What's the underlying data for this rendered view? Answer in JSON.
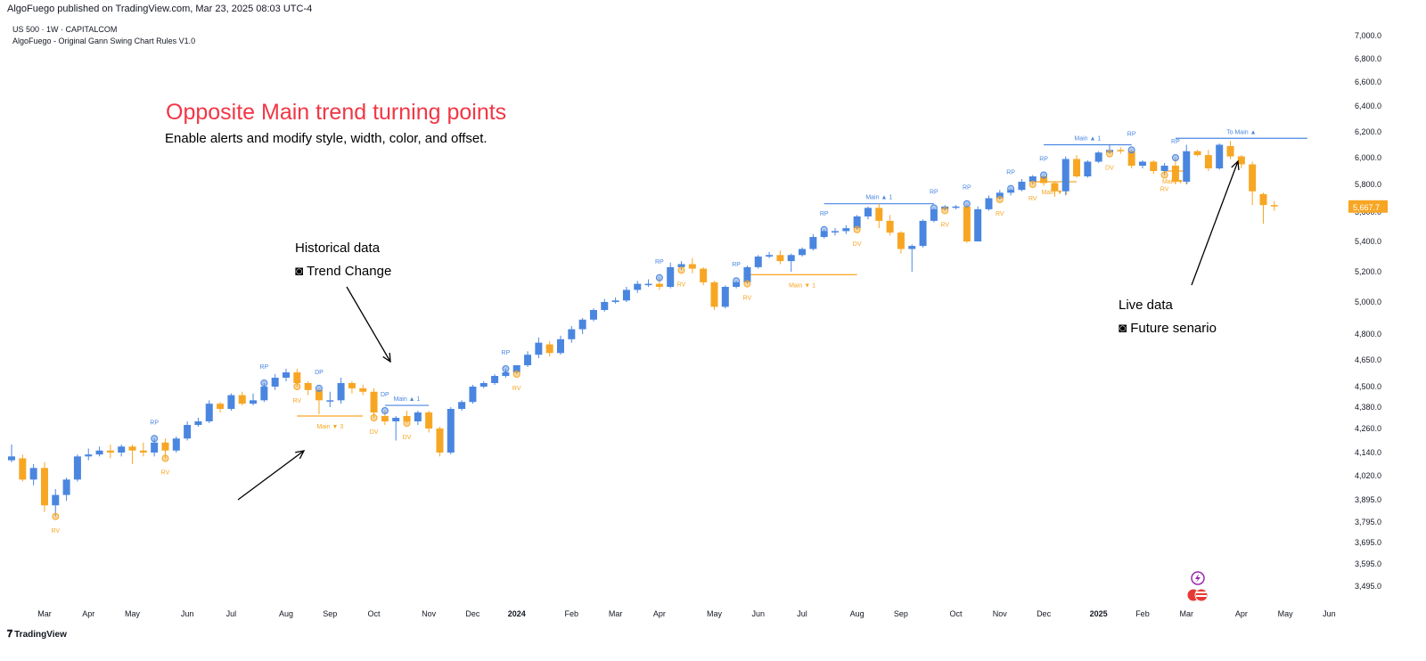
{
  "publisher_line": "AlgoFuego published on TradingView.com, Mar 23, 2025 08:03 UTC-4",
  "symbol_line": "US 500 · 1W · CAPITALCOM",
  "indicator_line": "AlgoFuego - Original Gann Swing Chart Rules V1.0",
  "headline": "Opposite Main trend turning points",
  "subheadline": "Enable alerts and modify style, width, color, and offset.",
  "notes": {
    "historical_title": "Historical data",
    "historical_sub": "◙ Trend Change",
    "live_title": "Live data",
    "live_sub": "◙ Future senario"
  },
  "footer": "TradingView",
  "colors": {
    "bull": "#4a86e0",
    "bear": "#f7a624",
    "headline": "#f23645",
    "price_label": "#f7a624"
  },
  "chart_data": {
    "type": "candlestick",
    "title": "US 500 · 1W · CAPITALCOM",
    "current_price": "5,667.7",
    "y_ticks": [
      "7,000.0",
      "6,800.0",
      "6,600.0",
      "6,400.0",
      "6,200.0",
      "6,000.0",
      "5,800.0",
      "5,600.0",
      "5,400.0",
      "5,200.0",
      "5,000.0",
      "4,800.0",
      "4,650.0",
      "4,500.0",
      "4,380.0",
      "4,260.0",
      "4,140.0",
      "4,020.0",
      "3,895.0",
      "3,795.0",
      "3,695.0",
      "3,595.0",
      "3,495.0"
    ],
    "y_tick_values": [
      7000,
      6800,
      6600,
      6400,
      6200,
      6000,
      5800,
      5600,
      5400,
      5200,
      5000,
      4800,
      4650,
      4500,
      4380,
      4260,
      4140,
      4020,
      3895,
      3795,
      3695,
      3595,
      3495
    ],
    "x_labels": [
      {
        "label": "Mar",
        "week": 3
      },
      {
        "label": "Apr",
        "week": 7
      },
      {
        "label": "May",
        "week": 11
      },
      {
        "label": "Jun",
        "week": 16
      },
      {
        "label": "Jul",
        "week": 20
      },
      {
        "label": "Aug",
        "week": 25
      },
      {
        "label": "Sep",
        "week": 29
      },
      {
        "label": "Oct",
        "week": 33
      },
      {
        "label": "Nov",
        "week": 38
      },
      {
        "label": "Dec",
        "week": 42
      },
      {
        "label": "2024",
        "week": 46
      },
      {
        "label": "Feb",
        "week": 51
      },
      {
        "label": "Mar",
        "week": 55
      },
      {
        "label": "Apr",
        "week": 59
      },
      {
        "label": "May",
        "week": 64
      },
      {
        "label": "Jun",
        "week": 68
      },
      {
        "label": "Jul",
        "week": 72
      },
      {
        "label": "Aug",
        "week": 77
      },
      {
        "label": "Sep",
        "week": 81
      },
      {
        "label": "Oct",
        "week": 86
      },
      {
        "label": "Nov",
        "week": 90
      },
      {
        "label": "Dec",
        "week": 94
      },
      {
        "label": "2025",
        "week": 99
      },
      {
        "label": "Feb",
        "week": 103
      },
      {
        "label": "Mar",
        "week": 107
      },
      {
        "label": "Apr",
        "week": 112
      },
      {
        "label": "May",
        "week": 116
      },
      {
        "label": "Jun",
        "week": 120
      }
    ],
    "bold_x_labels": [
      "2024",
      "2025"
    ],
    "candles": [
      [
        4100,
        4120,
        4180,
        4090
      ],
      [
        4110,
        4000,
        4130,
        3990
      ],
      [
        4000,
        4060,
        4080,
        3970
      ],
      [
        4060,
        3870,
        4090,
        3840
      ],
      [
        3870,
        3920,
        3950,
        3820
      ],
      [
        3920,
        4000,
        4010,
        3890
      ],
      [
        4000,
        4120,
        4130,
        3990
      ],
      [
        4120,
        4130,
        4160,
        4100
      ],
      [
        4130,
        4150,
        4170,
        4120
      ],
      [
        4150,
        4140,
        4180,
        4110
      ],
      [
        4140,
        4170,
        4180,
        4120
      ],
      [
        4170,
        4150,
        4180,
        4080
      ],
      [
        4150,
        4140,
        4190,
        4120
      ],
      [
        4140,
        4190,
        4210,
        4120
      ],
      [
        4190,
        4150,
        4210,
        4110
      ],
      [
        4150,
        4210,
        4220,
        4140
      ],
      [
        4210,
        4280,
        4300,
        4200
      ],
      [
        4280,
        4300,
        4320,
        4270
      ],
      [
        4300,
        4400,
        4420,
        4290
      ],
      [
        4400,
        4370,
        4410,
        4350
      ],
      [
        4370,
        4450,
        4460,
        4360
      ],
      [
        4450,
        4400,
        4470,
        4390
      ],
      [
        4400,
        4420,
        4460,
        4390
      ],
      [
        4420,
        4500,
        4520,
        4410
      ],
      [
        4500,
        4550,
        4570,
        4480
      ],
      [
        4550,
        4580,
        4600,
        4530
      ],
      [
        4580,
        4520,
        4600,
        4500
      ],
      [
        4520,
        4480,
        4530,
        4450
      ],
      [
        4480,
        4420,
        4490,
        4340
      ],
      [
        4420,
        4420,
        4470,
        4380
      ],
      [
        4420,
        4520,
        4550,
        4400
      ],
      [
        4520,
        4490,
        4530,
        4460
      ],
      [
        4490,
        4470,
        4510,
        4450
      ],
      [
        4470,
        4350,
        4490,
        4320
      ],
      [
        4330,
        4300,
        4360,
        4280
      ],
      [
        4300,
        4320,
        4330,
        4200
      ],
      [
        4330,
        4300,
        4360,
        4290
      ],
      [
        4300,
        4350,
        4360,
        4280
      ],
      [
        4350,
        4260,
        4360,
        4240
      ],
      [
        4260,
        4140,
        4270,
        4120
      ],
      [
        4140,
        4370,
        4380,
        4130
      ],
      [
        4370,
        4410,
        4420,
        4360
      ],
      [
        4410,
        4500,
        4510,
        4400
      ],
      [
        4500,
        4520,
        4530,
        4490
      ],
      [
        4520,
        4560,
        4570,
        4510
      ],
      [
        4560,
        4580,
        4600,
        4550
      ],
      [
        4580,
        4620,
        4620,
        4570
      ],
      [
        4620,
        4680,
        4700,
        4610
      ],
      [
        4680,
        4750,
        4780,
        4660
      ],
      [
        4740,
        4690,
        4760,
        4670
      ],
      [
        4690,
        4770,
        4790,
        4680
      ],
      [
        4770,
        4830,
        4850,
        4750
      ],
      [
        4830,
        4890,
        4900,
        4800
      ],
      [
        4890,
        4950,
        4960,
        4880
      ],
      [
        4950,
        5000,
        5020,
        4940
      ],
      [
        5000,
        5010,
        5030,
        4990
      ],
      [
        5010,
        5080,
        5100,
        5000
      ],
      [
        5080,
        5120,
        5140,
        5060
      ],
      [
        5120,
        5120,
        5150,
        5100
      ],
      [
        5120,
        5100,
        5160,
        5080
      ],
      [
        5100,
        5230,
        5260,
        5090
      ],
      [
        5230,
        5250,
        5270,
        5210
      ],
      [
        5250,
        5220,
        5290,
        5190
      ],
      [
        5220,
        5130,
        5230,
        5110
      ],
      [
        5130,
        4970,
        5140,
        4950
      ],
      [
        4970,
        5100,
        5110,
        4960
      ],
      [
        5100,
        5130,
        5140,
        5090
      ],
      [
        5130,
        5230,
        5240,
        5120
      ],
      [
        5230,
        5300,
        5310,
        5220
      ],
      [
        5300,
        5310,
        5330,
        5290
      ],
      [
        5310,
        5270,
        5340,
        5250
      ],
      [
        5270,
        5310,
        5320,
        5200
      ],
      [
        5310,
        5350,
        5360,
        5300
      ],
      [
        5350,
        5430,
        5450,
        5340
      ],
      [
        5430,
        5470,
        5480,
        5420
      ],
      [
        5470,
        5470,
        5490,
        5440
      ],
      [
        5470,
        5490,
        5510,
        5450
      ],
      [
        5490,
        5570,
        5580,
        5480
      ],
      [
        5570,
        5630,
        5640,
        5550
      ],
      [
        5630,
        5540,
        5660,
        5490
      ],
      [
        5540,
        5460,
        5580,
        5440
      ],
      [
        5460,
        5350,
        5470,
        5320
      ],
      [
        5350,
        5370,
        5380,
        5200
      ],
      [
        5370,
        5540,
        5550,
        5360
      ],
      [
        5540,
        5620,
        5630,
        5530
      ],
      [
        5620,
        5640,
        5650,
        5610
      ],
      [
        5630,
        5640,
        5650,
        5620
      ],
      [
        5640,
        5400,
        5660,
        5390
      ],
      [
        5400,
        5620,
        5640,
        5400
      ],
      [
        5620,
        5700,
        5720,
        5610
      ],
      [
        5700,
        5740,
        5760,
        5690
      ],
      [
        5740,
        5760,
        5770,
        5720
      ],
      [
        5760,
        5820,
        5840,
        5750
      ],
      [
        5820,
        5860,
        5870,
        5800
      ],
      [
        5860,
        5810,
        5870,
        5790
      ],
      [
        5810,
        5750,
        5820,
        5710
      ],
      [
        5750,
        5990,
        6010,
        5720
      ],
      [
        5990,
        5860,
        6020,
        5850
      ],
      [
        5860,
        5970,
        5980,
        5850
      ],
      [
        5970,
        6040,
        6050,
        5960
      ],
      [
        6040,
        6060,
        6100,
        6030
      ],
      [
        6060,
        6050,
        6080,
        6030
      ],
      [
        6050,
        5940,
        6060,
        5920
      ],
      [
        5940,
        5970,
        5980,
        5920
      ],
      [
        5970,
        5900,
        5980,
        5880
      ],
      [
        5900,
        5940,
        5960,
        5870
      ],
      [
        5940,
        5820,
        6000,
        5800
      ],
      [
        5820,
        6050,
        6100,
        5800
      ],
      [
        6050,
        6020,
        6060,
        6010
      ],
      [
        6020,
        5920,
        6060,
        5900
      ],
      [
        5920,
        6100,
        6110,
        5910
      ],
      [
        6090,
        6010,
        6130,
        5990
      ],
      [
        6010,
        5950,
        6020,
        5920
      ],
      [
        5950,
        5750,
        5970,
        5650
      ],
      [
        5730,
        5650,
        5740,
        5520
      ],
      [
        5650,
        5640,
        5680,
        5610
      ]
    ],
    "swing_labels": [
      {
        "t": "RV",
        "w": 4,
        "kind": "low"
      },
      {
        "t": "RP",
        "w": 13,
        "kind": "high"
      },
      {
        "t": "RV",
        "w": 14,
        "kind": "low"
      },
      {
        "t": "RP",
        "w": 23,
        "kind": "high"
      },
      {
        "t": "RV",
        "w": 26,
        "kind": "low"
      },
      {
        "t": "DP",
        "w": 28,
        "kind": "high"
      },
      {
        "t": "DV",
        "w": 33,
        "kind": "low"
      },
      {
        "t": "DP",
        "w": 34,
        "kind": "high"
      },
      {
        "t": "DV",
        "w": 36,
        "kind": "low"
      },
      {
        "t": "RP",
        "w": 45,
        "kind": "high"
      },
      {
        "t": "RV",
        "w": 46,
        "kind": "low"
      },
      {
        "t": "RP",
        "w": 59,
        "kind": "high"
      },
      {
        "t": "RV",
        "w": 61,
        "kind": "low"
      },
      {
        "t": "RP",
        "w": 66,
        "kind": "high"
      },
      {
        "t": "RV",
        "w": 67,
        "kind": "low"
      },
      {
        "t": "RP",
        "w": 74,
        "kind": "high"
      },
      {
        "t": "DV",
        "w": 77,
        "kind": "low"
      },
      {
        "t": "RP",
        "w": 84,
        "kind": "high"
      },
      {
        "t": "RV",
        "w": 85,
        "kind": "low"
      },
      {
        "t": "RP",
        "w": 87,
        "kind": "high"
      },
      {
        "t": "RV",
        "w": 90,
        "kind": "low"
      },
      {
        "t": "RP",
        "w": 91,
        "kind": "high"
      },
      {
        "t": "RV",
        "w": 93,
        "kind": "low"
      },
      {
        "t": "RP",
        "w": 94,
        "kind": "high"
      },
      {
        "t": "RP",
        "w": 102,
        "kind": "high"
      },
      {
        "t": "DV",
        "w": 100,
        "kind": "low"
      },
      {
        "t": "RP",
        "w": 106,
        "kind": "high"
      },
      {
        "t": "RV",
        "w": 105,
        "kind": "low"
      }
    ],
    "level_lines": [
      {
        "t": "Main ▼ 3",
        "kind": "bear",
        "w1": 26,
        "w2": 32,
        "price": 4330
      },
      {
        "t": "Main ▲ 1",
        "kind": "bull",
        "w1": 34,
        "w2": 38,
        "price": 4390
      },
      {
        "t": "Main ▼ 1",
        "kind": "bear",
        "w1": 67,
        "w2": 77,
        "price": 5180
      },
      {
        "t": "Main ▲ 1",
        "kind": "bull",
        "w1": 74,
        "w2": 84,
        "price": 5660
      },
      {
        "t": "Main ▼ 1",
        "kind": "bear",
        "w1": 93,
        "w2": 97,
        "price": 5820
      },
      {
        "t": "Main ▲ 1",
        "kind": "bull",
        "w1": 94,
        "w2": 102,
        "price": 6100
      },
      {
        "t": "Main ▼ 1",
        "kind": "bear",
        "w1": 105,
        "w2": 107,
        "price": 5900
      },
      {
        "t": "To Main ▲",
        "kind": "bull",
        "w1": 106,
        "w2": 118,
        "price": 6150
      }
    ]
  }
}
